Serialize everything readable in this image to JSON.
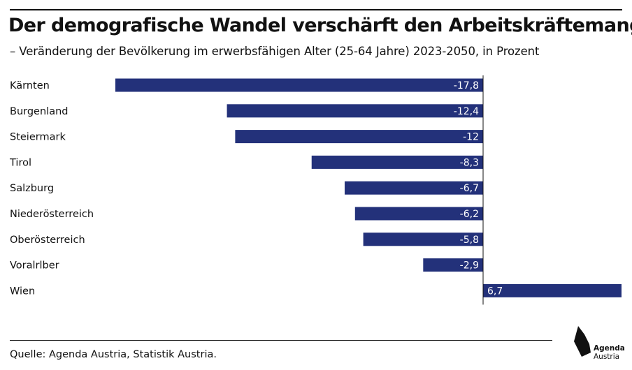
{
  "header": {
    "title": "Der demografische Wandel verschärft den Arbeitskräftemangel",
    "subtitle": "– Veränderung der Bevölkerung im erwerbsfähigen Alter (25-64 Jahre) 2023-2050, in Prozent"
  },
  "chart_data": {
    "type": "bar",
    "orientation": "horizontal",
    "categories": [
      "Kärnten",
      "Burgenland",
      "Steiermark",
      "Tirol",
      "Salzburg",
      "Niederösterreich",
      "Oberösterreich",
      "Voralrlber",
      "Wien"
    ],
    "values": [
      -17.8,
      -12.4,
      -12,
      -8.3,
      -6.7,
      -6.2,
      -5.8,
      -2.9,
      6.7
    ],
    "value_labels": [
      "-17,8",
      "-12,4",
      "-12",
      "-8,3",
      "-6,7",
      "-6,2",
      "-5,8",
      "-2,9",
      "6,7"
    ],
    "xlim": [
      -17.8,
      6.7
    ],
    "bar_color": "#23317a",
    "grid": false,
    "legend": "none"
  },
  "footer": {
    "source": "Quelle: Agenda Austria, Statistik Austria.",
    "logo_line1": "Agenda",
    "logo_line2": "Austria"
  }
}
